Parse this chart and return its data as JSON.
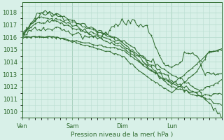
{
  "xlabel": "Pression niveau de la mer( hPa )",
  "bg_color": "#d8f0e8",
  "grid_color": "#b8ddd0",
  "line_color": "#2d6a2d",
  "ylim": [
    1009.5,
    1018.8
  ],
  "xlim": [
    0,
    96
  ],
  "xticks": [
    0,
    24,
    48,
    72
  ],
  "xtick_labels": [
    "Ven",
    "Sam",
    "Dim",
    "Lun"
  ],
  "yticks": [
    1010,
    1011,
    1012,
    1013,
    1014,
    1015,
    1016,
    1017,
    1018
  ],
  "n_hours": 97,
  "lines_ctrl": [
    {
      "pts": [
        [
          0,
          1016.0
        ],
        [
          8,
          1018.1
        ],
        [
          16,
          1017.8
        ],
        [
          48,
          1015.8
        ],
        [
          60,
          1014.2
        ],
        [
          72,
          1013.0
        ],
        [
          84,
          1011.8
        ],
        [
          96,
          1009.6
        ]
      ],
      "noise": 0.1
    },
    {
      "pts": [
        [
          0,
          1016.1
        ],
        [
          9,
          1018.0
        ],
        [
          16,
          1017.9
        ],
        [
          48,
          1015.6
        ],
        [
          60,
          1014.0
        ],
        [
          72,
          1012.6
        ],
        [
          84,
          1011.4
        ],
        [
          96,
          1010.5
        ]
      ],
      "noise": 0.08
    },
    {
      "pts": [
        [
          0,
          1016.2
        ],
        [
          7,
          1017.6
        ],
        [
          16,
          1017.5
        ],
        [
          48,
          1015.4
        ],
        [
          60,
          1013.8
        ],
        [
          72,
          1012.3
        ],
        [
          84,
          1011.2
        ],
        [
          96,
          1011.5
        ]
      ],
      "noise": 0.07
    },
    {
      "pts": [
        [
          0,
          1016.3
        ],
        [
          6,
          1017.1
        ],
        [
          16,
          1017.3
        ],
        [
          48,
          1015.2
        ],
        [
          60,
          1013.6
        ],
        [
          72,
          1012.0
        ],
        [
          84,
          1011.5
        ],
        [
          96,
          1012.5
        ]
      ],
      "noise": 0.06
    },
    {
      "pts": [
        [
          0,
          1016.3
        ],
        [
          14,
          1016.8
        ],
        [
          28,
          1016.1
        ],
        [
          38,
          1016.0
        ],
        [
          48,
          1017.2
        ],
        [
          54,
          1017.2
        ],
        [
          60,
          1016.8
        ],
        [
          68,
          1013.8
        ],
        [
          72,
          1013.5
        ],
        [
          80,
          1014.8
        ],
        [
          84,
          1014.5
        ],
        [
          88,
          1013.0
        ],
        [
          96,
          1013.0
        ]
      ],
      "noise": 0.12
    },
    {
      "pts": [
        [
          0,
          1016.0
        ],
        [
          16,
          1016.0
        ],
        [
          48,
          1015.0
        ],
        [
          60,
          1013.5
        ],
        [
          72,
          1012.2
        ],
        [
          84,
          1013.8
        ],
        [
          90,
          1014.8
        ],
        [
          96,
          1015.0
        ]
      ],
      "noise": 0.04
    },
    {
      "pts": [
        [
          0,
          1016.0
        ],
        [
          16,
          1016.0
        ],
        [
          48,
          1014.5
        ],
        [
          60,
          1012.8
        ],
        [
          72,
          1011.5
        ],
        [
          84,
          1013.2
        ],
        [
          90,
          1014.8
        ],
        [
          96,
          1015.0
        ]
      ],
      "noise": 0.04
    }
  ]
}
